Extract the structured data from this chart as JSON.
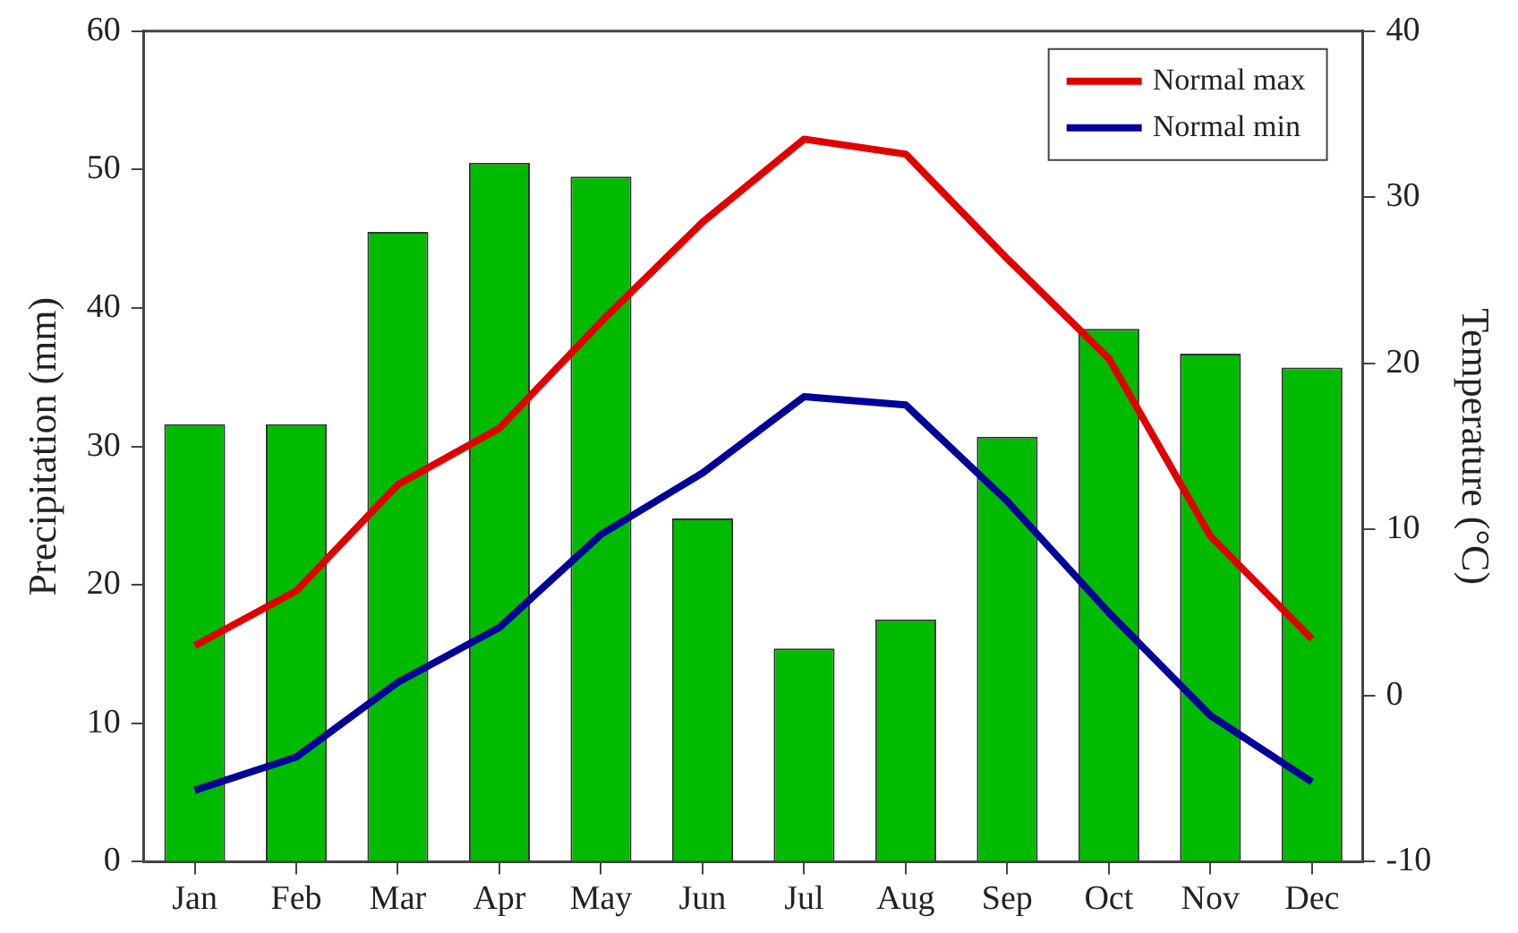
{
  "chart_data": {
    "type": "bar",
    "categories": [
      "Jan",
      "Feb",
      "Mar",
      "Apr",
      "May",
      "Jun",
      "Jul",
      "Aug",
      "Sep",
      "Oct",
      "Nov",
      "Dec"
    ],
    "ylabel": "Precipitation (mm)",
    "y2label": "Temperature (°C)",
    "series": [
      {
        "color": "#00bb00",
        "values": [
          31.6,
          31.6,
          45.5,
          50.5,
          49.5,
          24.8,
          15.4,
          17.5,
          30.7,
          38.5,
          36.7,
          35.7
        ]
      },
      {
        "type": "line",
        "name": "Normal max",
        "color": "#e00000",
        "axis": "y2",
        "values": [
          3.0,
          6.3,
          12.7,
          16.1,
          22.5,
          28.5,
          33.5,
          32.6,
          26.3,
          20.3,
          9.6,
          3.4
        ]
      },
      {
        "type": "line",
        "name": "Normal min",
        "color": "#000099",
        "axis": "y2",
        "values": [
          -5.7,
          -3.7,
          0.8,
          4.1,
          9.7,
          13.4,
          18.0,
          17.5,
          11.7,
          5.0,
          -1.2,
          -5.2
        ]
      }
    ],
    "ylim": [
      0,
      60
    ],
    "yticks": [
      0,
      10,
      20,
      30,
      40,
      50,
      60
    ],
    "y2lim": [
      -10,
      40
    ],
    "y2ticks": [
      -10,
      0,
      10,
      20,
      30,
      40
    ],
    "grid": false,
    "legend": "top right",
    "marker": "none",
    "line_style": "solid"
  }
}
